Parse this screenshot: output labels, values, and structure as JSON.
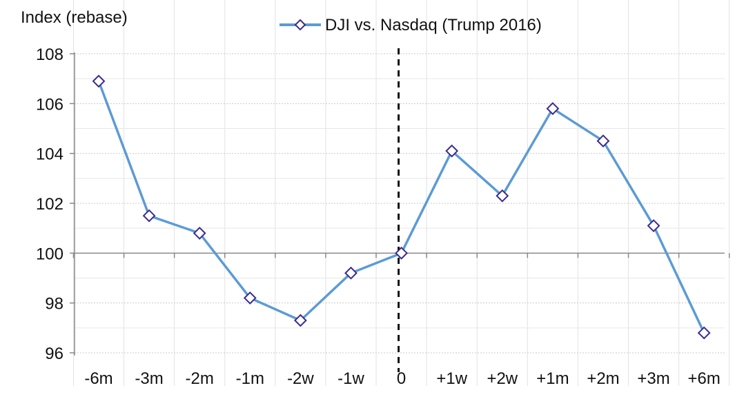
{
  "chart_data": {
    "type": "line",
    "title": "",
    "ylabel": "Index (rebase)",
    "xlabel": "",
    "categories": [
      "-6m",
      "-3m",
      "-2m",
      "-1m",
      "-2w",
      "-1w",
      "0",
      "+1w",
      "+2w",
      "+1m",
      "+2m",
      "+3m",
      "+6m"
    ],
    "series": [
      {
        "name": "DJI vs. Nasdaq (Trump 2016)",
        "color": "#5B9BD5",
        "marker": "diamond",
        "marker_fill": "#ffffff",
        "marker_stroke": "#3A2A8C",
        "values": [
          106.9,
          101.5,
          100.8,
          98.2,
          97.3,
          99.2,
          100.0,
          104.1,
          102.3,
          105.8,
          104.5,
          101.1,
          96.8
        ]
      }
    ],
    "ylim": [
      96,
      108
    ],
    "yticks": [
      96,
      98,
      100,
      102,
      104,
      106,
      108
    ],
    "grid": true,
    "legend_position": "top-center",
    "reference_line": {
      "x_category": "0",
      "style": "dashed",
      "color": "#111111"
    }
  }
}
